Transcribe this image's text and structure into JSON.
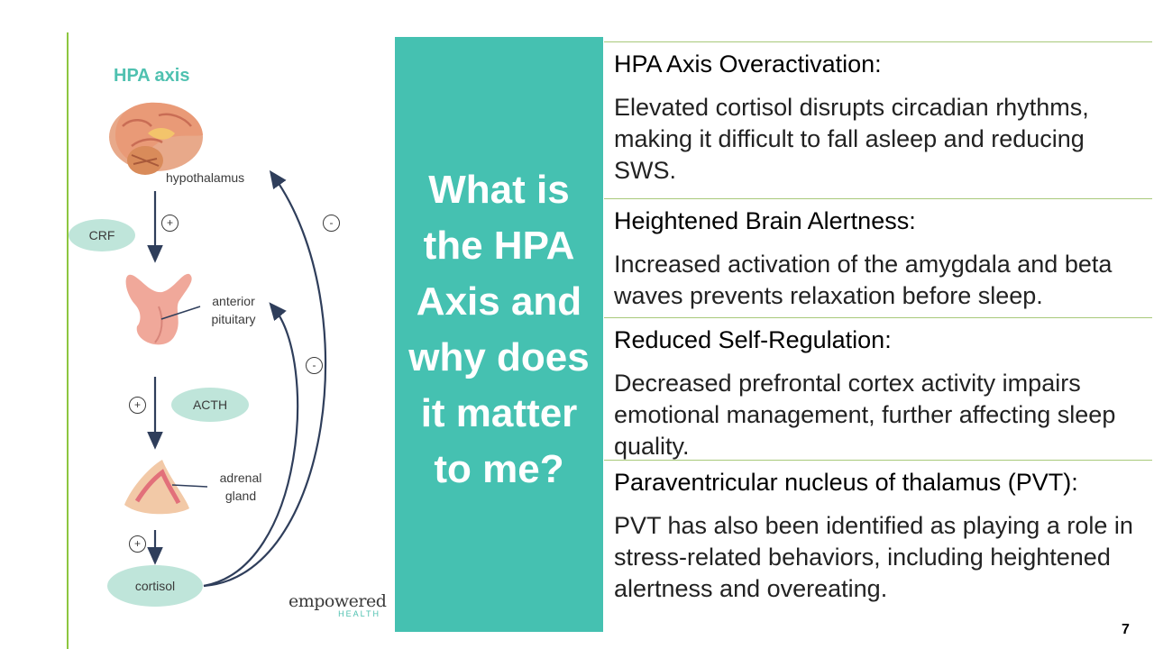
{
  "diagram": {
    "title": "HPA axis",
    "hypothalamus_label": "hypothalamus",
    "pituitary_label_line1": "anterior",
    "pituitary_label_line2": "pituitary",
    "adrenal_label_line1": "adrenal",
    "adrenal_label_line2": "gland",
    "crf_label": "CRF",
    "acth_label": "ACTH",
    "cortisol_label": "cortisol",
    "plus_sign": "+",
    "minus_sign": "-",
    "brand_name": "empowered",
    "brand_sub": "HEALTH",
    "colors": {
      "teal": "#4fc1b0",
      "pill": "#bfe5da",
      "arrow": "#2f3e5b",
      "organ": "#f0a89a"
    }
  },
  "panel": {
    "question": "What is the HPA Axis and why does it matter to me?",
    "color": "#45c1b1"
  },
  "rows": [
    {
      "heading": "HPA Axis Overactivation:",
      "body": "Elevated cortisol disrupts circadian rhythms, making it difficult to fall asleep and reducing SWS."
    },
    {
      "heading": "Heightened Brain Alertness:",
      "body": "Increased activation of the amygdala and beta waves prevents relaxation before sleep."
    },
    {
      "heading": "Reduced Self-Regulation:",
      "body": "Decreased prefrontal cortex activity impairs emotional management, further affecting sleep quality."
    },
    {
      "heading": "Paraventricular nucleus of  thalamus (PVT):",
      "body": "PVT has also been identified as playing a role in stress-related behaviors, including heightened alertness and overeating."
    }
  ],
  "page_number": "7",
  "accent_line_color": "#8dc63f"
}
